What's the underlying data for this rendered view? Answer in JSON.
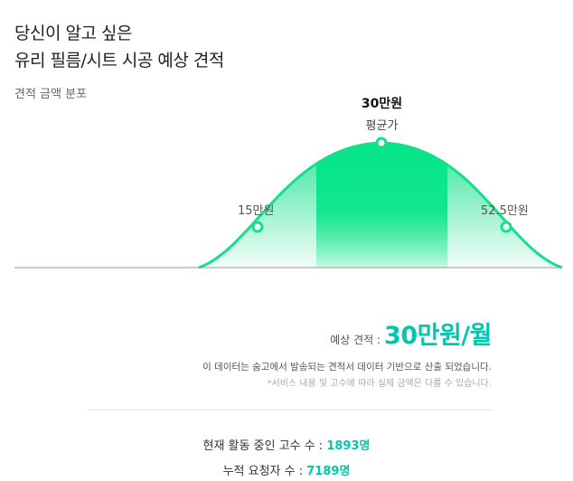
{
  "header": {
    "title_line1": "당신이 알고 싶은",
    "title_line2": "유리 필름/시트 시공 예상 견적"
  },
  "distribution": {
    "label": "견적 금액 분포",
    "average_price": "30만원",
    "average_label": "평균가",
    "low_price": "15만원",
    "high_price": "52.5만원"
  },
  "estimate": {
    "label": "예상 견적 :",
    "value": "30만원/월"
  },
  "notes": {
    "source": "이 데이터는 숨고에서 발송되는 견적서 데이터 기반으로 산출 되었습니다.",
    "disclaimer": "*서비스 내용 및 고수에 따라 실제 금액은 다를 수 있습니다."
  },
  "stats": {
    "active_pros_label": "현재 활동 중인 고수 수 :",
    "active_pros_value": "1893명",
    "total_requests_label": "누적 요청자 수 :",
    "total_requests_value": "7189명"
  },
  "colors": {
    "accent": "#00c7ae",
    "curve": "#12e08c"
  }
}
